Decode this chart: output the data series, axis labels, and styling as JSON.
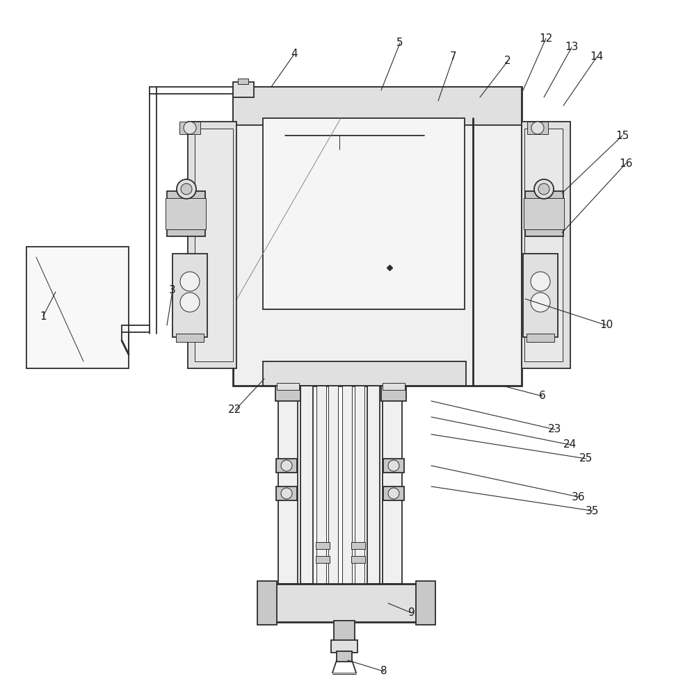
{
  "bg_color": "#ffffff",
  "lc": "#2c2c2c",
  "lw_main": 1.3,
  "lw_thin": 0.7,
  "lw_thick": 2.0,
  "fc_light": "#f2f2f2",
  "fc_mid": "#e0e0e0",
  "fc_dark": "#c8c8c8",
  "label_fs": 11,
  "label_color": "#1a1a1a"
}
